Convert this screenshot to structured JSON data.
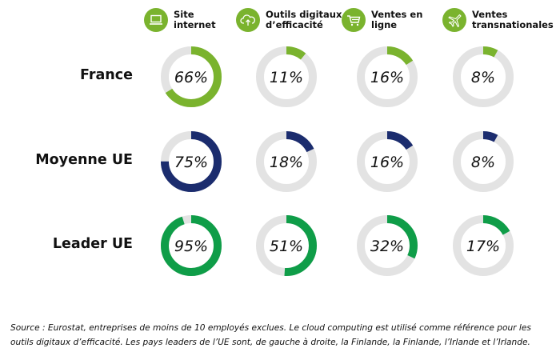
{
  "chart_data": {
    "type": "donut-grid",
    "columns": [
      {
        "label": "Site\ninternet",
        "icon": "laptop-icon"
      },
      {
        "label": "Outils digitaux\nd’efficacité",
        "icon": "cloud-upload-icon"
      },
      {
        "label": "Ventes en\nligne",
        "icon": "shopping-cart-icon"
      },
      {
        "label": "Ventes\ntransnationales",
        "icon": "airplane-icon"
      }
    ],
    "rows": [
      {
        "label": "France",
        "color": "#7ab32e",
        "values": [
          66,
          11,
          16,
          8
        ]
      },
      {
        "label": "Moyenne UE",
        "color": "#1b2c6e",
        "values": [
          75,
          18,
          16,
          8
        ]
      },
      {
        "label": "Leader UE",
        "color": "#0f9d48",
        "values": [
          95,
          51,
          32,
          17
        ]
      }
    ],
    "unit": "%",
    "track_color": "#e3e3e3",
    "icon_bg_color": "#7ab32e"
  },
  "footnote": "Source : Eurostat, entreprises de moins de 10 employés exclues. Le cloud computing est utilisé comme référence pour les outils digitaux d’efficacité. Les pays leaders de l’UE sont, de gauche à droite, la Finlande, la Finlande, l’Irlande et l’Irlande."
}
